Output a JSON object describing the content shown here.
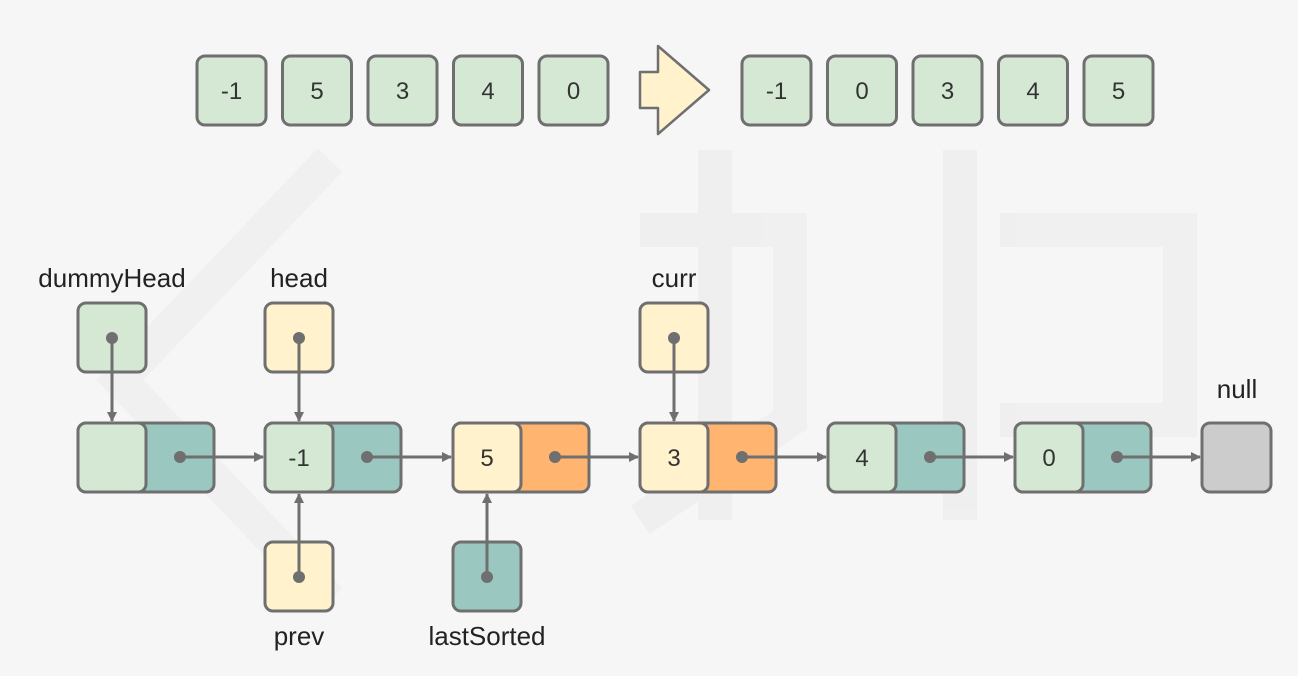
{
  "top_row": {
    "before": [
      "-1",
      "5",
      "3",
      "4",
      "0"
    ],
    "after": [
      "-1",
      "0",
      "3",
      "4",
      "5"
    ]
  },
  "labels": {
    "dummy_head": "dummyHead",
    "head": "head",
    "curr": "curr",
    "null": "null",
    "prev": "prev",
    "last_sorted": "lastSorted"
  },
  "nodes": [
    {
      "value": "",
      "val_color": "#d5e8d4",
      "next_color": "#9ac7bf"
    },
    {
      "value": "-1",
      "val_color": "#d5e8d4",
      "next_color": "#9ac7bf"
    },
    {
      "value": "5",
      "val_color": "#fff2cc",
      "next_color": "#ffb570"
    },
    {
      "value": "3",
      "val_color": "#fff2cc",
      "next_color": "#ffb570"
    },
    {
      "value": "4",
      "val_color": "#d5e8d4",
      "next_color": "#9ac7bf"
    },
    {
      "value": "0",
      "val_color": "#d5e8d4",
      "next_color": "#9ac7bf"
    }
  ],
  "colors": {
    "green": "#d5e8d4",
    "yellow": "#fff2cc",
    "teal": "#9ac7bf",
    "orange": "#ffb570",
    "gray": "#cccccc",
    "stroke": "#6f6f6f"
  }
}
